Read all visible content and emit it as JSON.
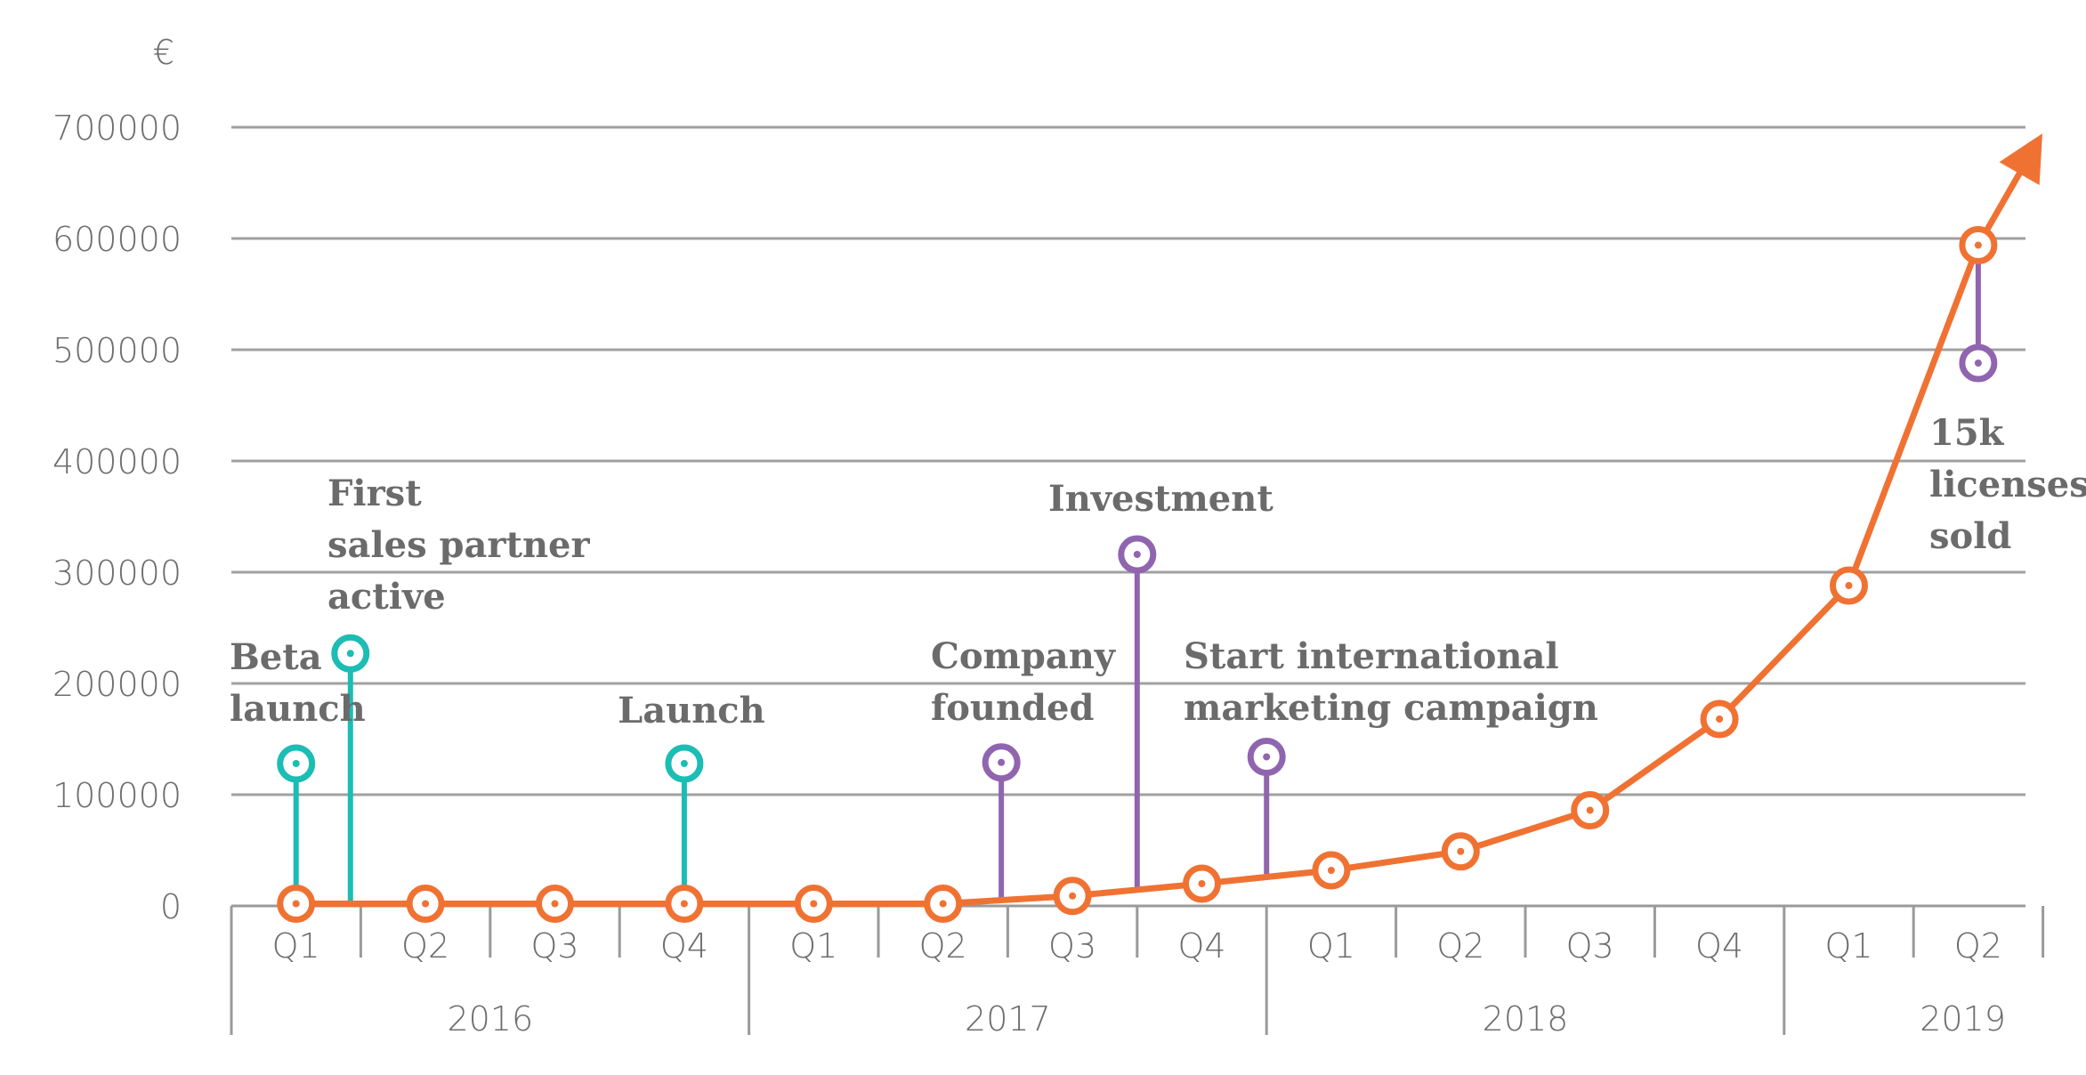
{
  "chart_data": {
    "type": "line",
    "ylabel": "€",
    "ylim": [
      0,
      700000
    ],
    "yticks": [
      "0",
      "100000",
      "200000",
      "300000",
      "400000",
      "500000",
      "600000",
      "700000"
    ],
    "categories": [
      "Q1",
      "Q2",
      "Q3",
      "Q4",
      "Q1",
      "Q2",
      "Q3",
      "Q4",
      "Q1",
      "Q2",
      "Q3",
      "Q4",
      "Q1",
      "Q2"
    ],
    "years": [
      {
        "label": "2016",
        "quarters": 4
      },
      {
        "label": "2017",
        "quarters": 4
      },
      {
        "label": "2018",
        "quarters": 4
      },
      {
        "label": "2019",
        "quarters": 2
      }
    ],
    "grid": true,
    "series": [
      {
        "color": "#f07233",
        "x": [
          0,
          1,
          2,
          3,
          4,
          5,
          6,
          7,
          8,
          9,
          10,
          11,
          12,
          13
        ],
        "values": [
          2000,
          2000,
          2000,
          2000,
          2000,
          2000,
          9000,
          20000,
          32000,
          49000,
          86000,
          168000,
          288000,
          594000
        ],
        "arrow_to": {
          "x": 13.4,
          "value": 675000
        }
      }
    ],
    "milestones": [
      {
        "label": [
          "Beta",
          "launch"
        ],
        "x": 0.0,
        "value": 128000,
        "stem_base": 0,
        "color": "#1bbdb4"
      },
      {
        "label": [
          "First",
          "sales partner",
          "active"
        ],
        "x": 0.42,
        "value": 227000,
        "stem_base": 0,
        "color": "#1bbdb4"
      },
      {
        "label": [
          "Launch"
        ],
        "x": 3.0,
        "value": 128000,
        "stem_base": 0,
        "color": "#1bbdb4"
      },
      {
        "label": [
          "Company",
          "founded"
        ],
        "x": 5.45,
        "value": 129000,
        "stem_base": 4500,
        "color": "#9065b0"
      },
      {
        "label": [
          "Investment"
        ],
        "x": 6.5,
        "value": 316000,
        "stem_base": 14000,
        "color": "#9065b0"
      },
      {
        "label": [
          "Start international",
          "marketing campaign"
        ],
        "x": 7.5,
        "value": 134000,
        "stem_base": 26000,
        "color": "#9065b0"
      },
      {
        "label": [
          "15k",
          "licenses",
          "sold"
        ],
        "x": 13.0,
        "value": 488000,
        "stem_base": 594000,
        "color": "#9065b0"
      }
    ],
    "colors": {
      "grid": "#a0a0a0",
      "axis": "#9a9a9a",
      "text": "#6b6b6b"
    }
  }
}
